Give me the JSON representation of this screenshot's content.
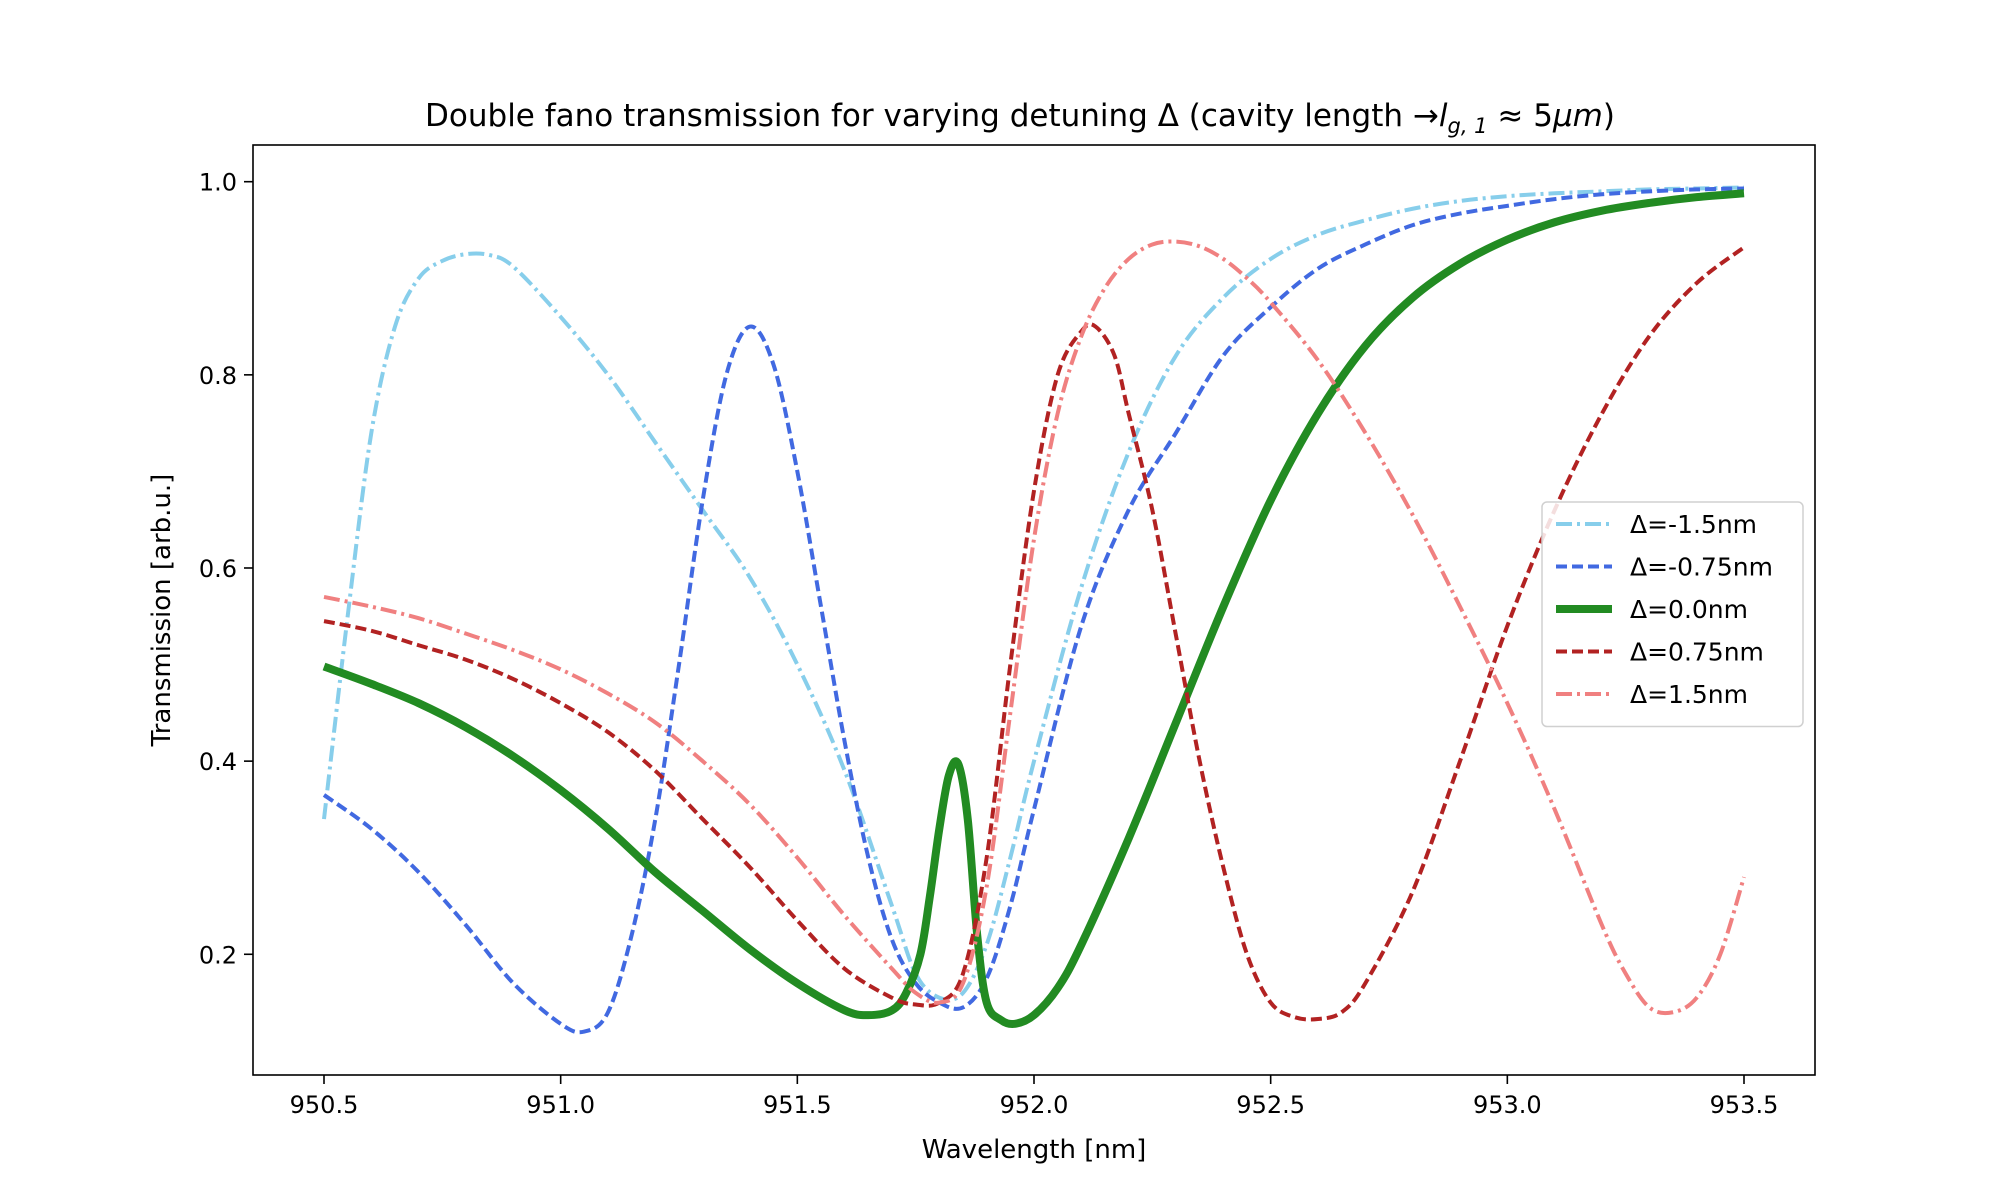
{
  "chart_data": {
    "type": "line",
    "title": "Double fano transmission for varying detuning Δ (cavity length → l_{g,1} ≈ 5μm)",
    "title_parts": {
      "prefix": "Double fano transmission for varying detuning Δ (cavity length ",
      "arrow": "→",
      "l": "l",
      "sub": "g, 1",
      "approx": " ≈ 5",
      "mu_m": "μm",
      "suffix": ")"
    },
    "xlabel": "Wavelength [nm]",
    "ylabel": "Transmission [arb.u.]",
    "xlim": [
      950.35,
      953.65
    ],
    "ylim": [
      0.075,
      1.038
    ],
    "xticks": [
      950.5,
      951.0,
      951.5,
      952.0,
      952.5,
      953.0,
      953.5
    ],
    "xtick_labels": [
      "950.5",
      "951.0",
      "951.5",
      "952.0",
      "952.5",
      "953.0",
      "953.5"
    ],
    "yticks": [
      0.2,
      0.4,
      0.6,
      0.8,
      1.0
    ],
    "ytick_labels": [
      "0.2",
      "0.4",
      "0.6",
      "0.8",
      "1.0"
    ],
    "grid": false,
    "legend_position": "center-right",
    "series": [
      {
        "name": "Δ=-1.5nm",
        "color": "#87ceeb",
        "dash": "dashdot",
        "width": 2,
        "x": [
          950.5,
          950.55,
          950.6,
          950.65,
          950.7,
          950.75,
          950.8,
          950.85,
          950.9,
          951.0,
          951.1,
          951.2,
          951.3,
          951.4,
          951.5,
          951.6,
          951.7,
          951.75,
          951.8,
          951.85,
          951.9,
          951.95,
          952.0,
          952.1,
          952.2,
          952.3,
          952.4,
          952.5,
          952.6,
          952.7,
          952.8,
          952.9,
          953.0,
          953.1,
          953.2,
          953.3,
          953.4,
          953.5
        ],
        "y": [
          0.34,
          0.55,
          0.74,
          0.85,
          0.9,
          0.918,
          0.925,
          0.924,
          0.912,
          0.86,
          0.8,
          0.73,
          0.66,
          0.59,
          0.5,
          0.39,
          0.25,
          0.18,
          0.155,
          0.16,
          0.21,
          0.3,
          0.4,
          0.58,
          0.72,
          0.82,
          0.88,
          0.92,
          0.945,
          0.96,
          0.972,
          0.98,
          0.985,
          0.988,
          0.99,
          0.992,
          0.993,
          0.994
        ]
      },
      {
        "name": "Δ=-0.75nm",
        "color": "#4169e1",
        "dash": "dashed",
        "width": 2,
        "x": [
          950.5,
          950.6,
          950.7,
          950.8,
          950.9,
          951.0,
          951.05,
          951.1,
          951.15,
          951.2,
          951.25,
          951.3,
          951.35,
          951.4,
          951.45,
          951.5,
          951.55,
          951.6,
          951.65,
          951.7,
          951.75,
          951.8,
          951.85,
          951.9,
          951.95,
          952.0,
          952.1,
          952.2,
          952.3,
          952.4,
          952.5,
          952.6,
          952.7,
          952.8,
          952.9,
          953.0,
          953.1,
          953.2,
          953.3,
          953.4,
          953.5
        ],
        "y": [
          0.365,
          0.33,
          0.285,
          0.23,
          0.17,
          0.128,
          0.12,
          0.14,
          0.22,
          0.34,
          0.5,
          0.67,
          0.8,
          0.85,
          0.81,
          0.7,
          0.56,
          0.42,
          0.3,
          0.215,
          0.17,
          0.15,
          0.145,
          0.175,
          0.25,
          0.35,
          0.54,
          0.66,
          0.74,
          0.82,
          0.87,
          0.91,
          0.935,
          0.955,
          0.967,
          0.975,
          0.982,
          0.987,
          0.99,
          0.992,
          0.993
        ]
      },
      {
        "name": "Δ=0.0nm",
        "color": "#228b22",
        "dash": "solid",
        "width": 4,
        "x": [
          950.5,
          950.6,
          950.7,
          950.8,
          950.9,
          951.0,
          951.1,
          951.2,
          951.3,
          951.4,
          951.5,
          951.6,
          951.65,
          951.7,
          951.73,
          951.76,
          951.78,
          951.8,
          951.82,
          951.84,
          951.86,
          951.88,
          951.9,
          951.93,
          951.96,
          952.0,
          952.05,
          952.1,
          952.2,
          952.3,
          952.4,
          952.5,
          952.6,
          952.7,
          952.8,
          952.9,
          953.0,
          953.1,
          953.2,
          953.3,
          953.4,
          953.5
        ],
        "y": [
          0.498,
          0.48,
          0.46,
          0.435,
          0.405,
          0.37,
          0.33,
          0.285,
          0.245,
          0.205,
          0.17,
          0.142,
          0.137,
          0.142,
          0.16,
          0.2,
          0.26,
          0.33,
          0.385,
          0.397,
          0.34,
          0.22,
          0.15,
          0.132,
          0.128,
          0.137,
          0.165,
          0.21,
          0.32,
          0.44,
          0.56,
          0.67,
          0.76,
          0.83,
          0.88,
          0.915,
          0.94,
          0.958,
          0.97,
          0.978,
          0.984,
          0.988
        ]
      },
      {
        "name": "Δ=0.75nm",
        "color": "#b22222",
        "dash": "dashed",
        "width": 2,
        "x": [
          950.5,
          950.6,
          950.7,
          950.8,
          950.9,
          951.0,
          951.1,
          951.2,
          951.3,
          951.4,
          951.5,
          951.6,
          951.7,
          951.75,
          951.8,
          951.85,
          951.9,
          951.95,
          952.0,
          952.05,
          952.1,
          952.13,
          952.17,
          952.2,
          952.25,
          952.3,
          952.35,
          952.4,
          952.45,
          952.5,
          952.55,
          952.6,
          952.65,
          952.7,
          952.8,
          952.9,
          953.0,
          953.1,
          953.2,
          953.3,
          953.4,
          953.5
        ],
        "y": [
          0.545,
          0.535,
          0.52,
          0.505,
          0.485,
          0.46,
          0.43,
          0.39,
          0.34,
          0.29,
          0.235,
          0.185,
          0.155,
          0.148,
          0.15,
          0.18,
          0.3,
          0.5,
          0.68,
          0.8,
          0.845,
          0.85,
          0.82,
          0.76,
          0.66,
          0.53,
          0.4,
          0.29,
          0.2,
          0.15,
          0.135,
          0.133,
          0.14,
          0.17,
          0.265,
          0.4,
          0.54,
          0.66,
          0.76,
          0.84,
          0.895,
          0.932
        ]
      },
      {
        "name": "Δ=1.5nm",
        "color": "#f08080",
        "dash": "dashdot",
        "width": 2,
        "x": [
          950.5,
          950.6,
          950.7,
          950.8,
          950.9,
          951.0,
          951.1,
          951.2,
          951.3,
          951.4,
          951.5,
          951.6,
          951.7,
          951.75,
          951.8,
          951.85,
          951.9,
          951.95,
          952.0,
          952.05,
          952.1,
          952.15,
          952.2,
          952.25,
          952.3,
          952.35,
          952.4,
          952.45,
          952.5,
          952.6,
          952.7,
          952.8,
          952.9,
          953.0,
          953.1,
          953.2,
          953.25,
          953.3,
          953.35,
          953.4,
          953.45,
          953.5
        ],
        "y": [
          0.57,
          0.56,
          0.548,
          0.532,
          0.515,
          0.495,
          0.47,
          0.44,
          0.4,
          0.355,
          0.3,
          0.24,
          0.185,
          0.16,
          0.15,
          0.17,
          0.27,
          0.45,
          0.63,
          0.76,
          0.84,
          0.89,
          0.92,
          0.935,
          0.938,
          0.933,
          0.92,
          0.9,
          0.875,
          0.815,
          0.74,
          0.655,
          0.56,
          0.46,
          0.35,
          0.23,
          0.18,
          0.145,
          0.14,
          0.155,
          0.2,
          0.28
        ]
      }
    ]
  }
}
